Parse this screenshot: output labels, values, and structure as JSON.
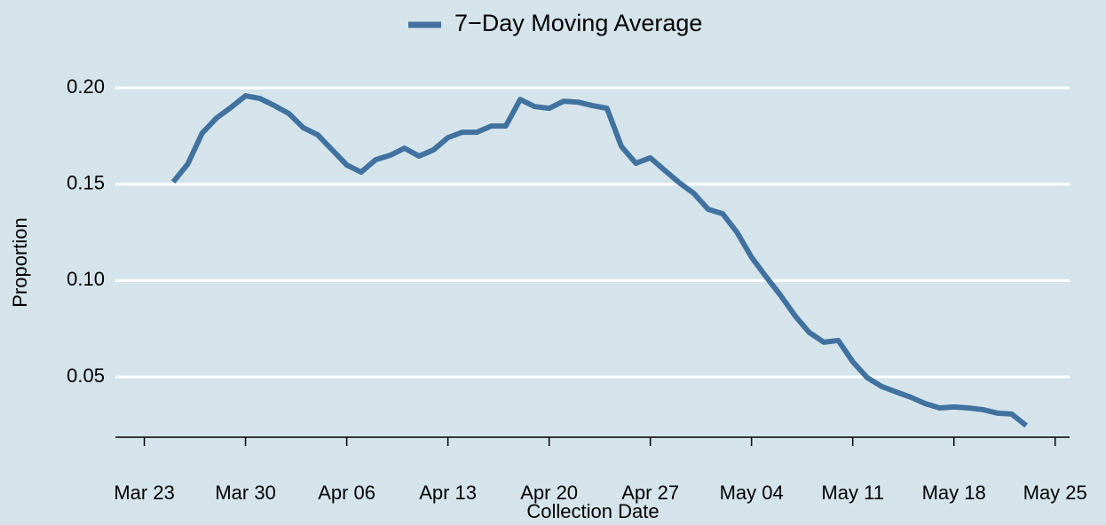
{
  "chart_data": {
    "type": "line",
    "x_label": "Collection Date",
    "y_label": "Proportion",
    "x": [
      "Mar 25",
      "Mar 26",
      "Mar 27",
      "Mar 28",
      "Mar 29",
      "Mar 30",
      "Mar 31",
      "Apr 01",
      "Apr 02",
      "Apr 03",
      "Apr 04",
      "Apr 05",
      "Apr 06",
      "Apr 07",
      "Apr 08",
      "Apr 09",
      "Apr 10",
      "Apr 11",
      "Apr 12",
      "Apr 13",
      "Apr 14",
      "Apr 15",
      "Apr 16",
      "Apr 17",
      "Apr 18",
      "Apr 19",
      "Apr 20",
      "Apr 21",
      "Apr 22",
      "Apr 23",
      "Apr 24",
      "Apr 25",
      "Apr 26",
      "Apr 27",
      "Apr 28",
      "Apr 29",
      "Apr 30",
      "May 01",
      "May 02",
      "May 03",
      "May 04",
      "May 05",
      "May 06",
      "May 07",
      "May 08",
      "May 09",
      "May 10",
      "May 11",
      "May 12",
      "May 13",
      "May 14",
      "May 15",
      "May 16",
      "May 17",
      "May 18",
      "May 19",
      "May 20",
      "May 21",
      "May 22",
      "May 23"
    ],
    "series": [
      {
        "name": "7−Day Moving Average",
        "color": "#41729f",
        "values": [
          0.1512,
          0.1604,
          0.1765,
          0.1844,
          0.1899,
          0.1959,
          0.1945,
          0.1908,
          0.1867,
          0.1793,
          0.1756,
          0.1678,
          0.16,
          0.1563,
          0.1627,
          0.165,
          0.1687,
          0.1646,
          0.1678,
          0.1742,
          0.177,
          0.177,
          0.1802,
          0.1802,
          0.194,
          0.1903,
          0.1894,
          0.1931,
          0.1926,
          0.1908,
          0.1894,
          0.1696,
          0.1609,
          0.1637,
          0.1572,
          0.1508,
          0.1453,
          0.137,
          0.1347,
          0.125,
          0.1121,
          0.102,
          0.0924,
          0.0818,
          0.073,
          0.068,
          0.0689,
          0.0579,
          0.0496,
          0.045,
          0.0422,
          0.0395,
          0.0362,
          0.0339,
          0.0344,
          0.0339,
          0.033,
          0.0312,
          0.0307,
          0.0247
        ]
      }
    ],
    "xlim": [
      "Mar 21",
      "May 26"
    ],
    "xticks": [
      "Mar 23",
      "Mar 30",
      "Apr 06",
      "Apr 13",
      "Apr 20",
      "Apr 27",
      "May 04",
      "May 11",
      "May 18",
      "May 25"
    ],
    "ylim": [
      0.0187,
      0.218
    ],
    "yticks": [
      {
        "value": 0.05,
        "label": "0.05"
      },
      {
        "value": 0.1,
        "label": "0.10"
      },
      {
        "value": 0.15,
        "label": "0.15"
      },
      {
        "value": 0.2,
        "label": "0.20"
      }
    ],
    "grid": true,
    "legend": "top"
  }
}
